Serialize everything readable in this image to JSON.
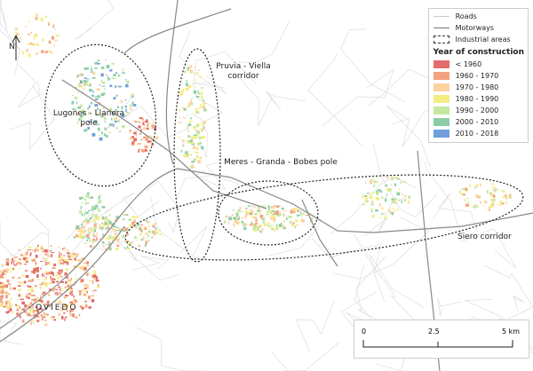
{
  "legend": {
    "roads": "Roads",
    "motorways": "Motorways",
    "industrial": "Industrial areas",
    "title": "Year of construction",
    "classes": [
      {
        "label": "< 1960",
        "color": "#e36b6b"
      },
      {
        "label": "1960 - 1970",
        "color": "#f4a27e"
      },
      {
        "label": "1970 - 1980",
        "color": "#fcd39e"
      },
      {
        "label": "1980 - 1990",
        "color": "#f3ee82"
      },
      {
        "label": "1990 - 2000",
        "color": "#c4e8a0"
      },
      {
        "label": "2000 - 2010",
        "color": "#8ccda6"
      },
      {
        "label": "2010 - 2018",
        "color": "#6f9fdc"
      }
    ]
  },
  "labels": {
    "lugones": "Lugones - Llanera pole",
    "pruvia": "Pruvia - Viella corridor",
    "meres": "Meres - Granda - Bobes pole",
    "siero": "Siero corridor",
    "oviedo": "OVIEDO",
    "north": "N"
  },
  "scale": {
    "t0": "0",
    "t1": "2.5",
    "t2": "5 km"
  }
}
